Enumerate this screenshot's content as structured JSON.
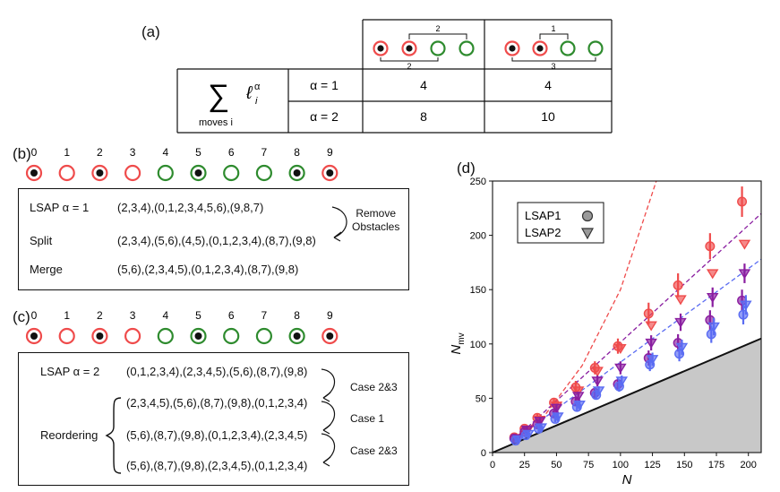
{
  "panel_a": {
    "label": "(a)",
    "formula": {
      "main": "∑",
      "sub": "moves  i",
      "term": "ℓ",
      "sup": "α",
      "idx": "i"
    },
    "col1_bracket_top": "2",
    "col1_bracket_bottom": "2",
    "col2_bracket_top": "1",
    "col2_bracket_bottom": "3",
    "rows": [
      {
        "alpha": "α = 1",
        "v1": "4",
        "v2": "4"
      },
      {
        "alpha": "α = 2",
        "v1": "8",
        "v2": "10"
      }
    ]
  },
  "panel_b": {
    "label": "(b)",
    "indices": [
      "0",
      "1",
      "2",
      "3",
      "4",
      "5",
      "6",
      "7",
      "8",
      "9"
    ],
    "ring_colors": [
      "red",
      "red",
      "red",
      "red",
      "green",
      "green",
      "green",
      "green",
      "green",
      "red"
    ],
    "filled": [
      true,
      false,
      true,
      false,
      false,
      true,
      false,
      false,
      true,
      true
    ],
    "lines": [
      {
        "label": "LSAP  α = 1",
        "text": "(2,3,4),(0,1,2,3,4,5,6),(9,8,7)"
      },
      {
        "label": "Split",
        "text": "(2,3,4),(5,6),(4,5),(0,1,2,3,4),(8,7),(9,8)"
      },
      {
        "label": "Merge",
        "text": "(5,6),(2,3,4,5),(0,1,2,3,4),(8,7),(9,8)"
      }
    ],
    "annotation": [
      "Remove",
      "Obstacles"
    ]
  },
  "panel_c": {
    "label": "(c)",
    "indices": [
      "0",
      "1",
      "2",
      "3",
      "4",
      "5",
      "6",
      "7",
      "8",
      "9"
    ],
    "lines": [
      {
        "label": "LSAP α = 2",
        "text": "(0,1,2,3,4),(2,3,4,5),(5,6),(8,7),(9,8)"
      },
      {
        "label": "",
        "text": "(2,3,4,5),(5,6),(8,7),(9,8),(0,1,2,3,4)"
      },
      {
        "label": "Reordering",
        "text": "(5,6),(8,7),(9,8),(0,1,2,3,4),(2,3,4,5)"
      },
      {
        "label": "",
        "text": "(5,6),(8,7),(9,8),(2,3,4,5),(0,1,2,3,4)"
      }
    ],
    "cases": [
      "Case 2&3",
      "Case 1",
      "Case 2&3"
    ]
  },
  "panel_d": {
    "label": "(d)",
    "legend": [
      {
        "name": "LSAP1",
        "marker": "circle"
      },
      {
        "name": "LSAP2",
        "marker": "triangle"
      }
    ]
  },
  "chart_data": {
    "type": "scatter",
    "xlabel": "N",
    "ylabel": "N_mv",
    "xlim": [
      0,
      210
    ],
    "ylim": [
      0,
      250
    ],
    "xticks": [
      0,
      25,
      50,
      75,
      100,
      125,
      150,
      175,
      200
    ],
    "yticks": [
      0,
      50,
      100,
      150,
      200,
      250
    ],
    "grid": false,
    "legend_position": "top-left",
    "colors": {
      "red": "#ef4b4b",
      "purple": "#8a1ea0",
      "blue": "#5a6cf2",
      "lower_bound_fill": "#c8c8c8"
    },
    "lower_bound": {
      "x": [
        0,
        210
      ],
      "y": [
        0,
        105
      ]
    },
    "fits": [
      {
        "color": "red",
        "x": [
          15,
          40,
          70,
          100,
          128
        ],
        "y": [
          12,
          33,
          80,
          150,
          250
        ]
      },
      {
        "color": "purple",
        "x": [
          15,
          210
        ],
        "y": [
          10,
          220
        ]
      },
      {
        "color": "blue",
        "x": [
          15,
          210
        ],
        "y": [
          10,
          178
        ]
      }
    ],
    "series": [
      {
        "marker": "circle",
        "color": "red",
        "x": [
          17,
          25,
          35,
          48,
          65,
          80,
          98,
          122,
          145,
          170,
          195
        ],
        "y": [
          14,
          22,
          32,
          46,
          60,
          78,
          98,
          128,
          154,
          190,
          231
        ],
        "err": [
          3,
          3,
          4,
          4,
          6,
          6,
          7,
          10,
          11,
          12,
          14
        ]
      },
      {
        "marker": "triangle",
        "color": "red",
        "x": [
          19,
          27,
          37,
          50,
          67,
          82,
          100,
          124,
          147,
          172,
          197
        ],
        "y": [
          13,
          20,
          30,
          43,
          57,
          75,
          96,
          117,
          141,
          165,
          192
        ],
        "err": [
          0,
          0,
          0,
          0,
          0,
          0,
          0,
          0,
          0,
          0,
          0
        ]
      },
      {
        "marker": "circle",
        "color": "purple",
        "x": [
          17,
          25,
          35,
          48,
          65,
          80,
          98,
          122,
          145,
          170,
          195
        ],
        "y": [
          13,
          19,
          26,
          36,
          47,
          55,
          63,
          87,
          101,
          122,
          140
        ],
        "err": [
          2,
          2,
          3,
          3,
          4,
          5,
          5,
          7,
          8,
          9,
          10
        ]
      },
      {
        "marker": "triangle",
        "color": "purple",
        "x": [
          19,
          27,
          37,
          50,
          67,
          82,
          100,
          124,
          147,
          172,
          197
        ],
        "y": [
          13,
          21,
          29,
          41,
          52,
          66,
          78,
          101,
          120,
          143,
          165
        ],
        "err": [
          2,
          3,
          3,
          4,
          4,
          5,
          6,
          7,
          8,
          9,
          9
        ]
      },
      {
        "marker": "circle",
        "color": "blue",
        "x": [
          18,
          26,
          36,
          49,
          66,
          81,
          99,
          123,
          146,
          171,
          196
        ],
        "y": [
          11,
          16,
          22,
          31,
          42,
          53,
          61,
          81,
          91,
          109,
          127
        ],
        "err": [
          2,
          2,
          3,
          3,
          4,
          4,
          5,
          6,
          7,
          8,
          9
        ]
      },
      {
        "marker": "triangle",
        "color": "blue",
        "x": [
          20,
          28,
          38,
          51,
          68,
          83,
          101,
          125,
          148,
          173,
          198
        ],
        "y": [
          12,
          17,
          23,
          33,
          44,
          57,
          66,
          86,
          97,
          116,
          136
        ],
        "err": [
          2,
          2,
          3,
          3,
          4,
          4,
          5,
          6,
          7,
          8,
          9
        ]
      }
    ]
  }
}
